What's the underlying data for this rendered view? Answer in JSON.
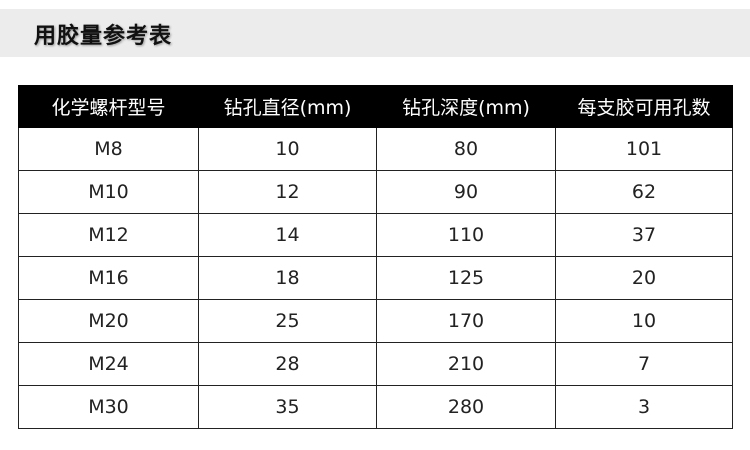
{
  "title": "用胶量参考表",
  "table": {
    "headers": [
      "化学螺杆型号",
      "钻孔直径(mm)",
      "钻孔深度(mm)",
      "每支胶可用孔数"
    ],
    "rows": [
      [
        "M8",
        "10",
        "80",
        "101"
      ],
      [
        "M10",
        "12",
        "90",
        "62"
      ],
      [
        "M12",
        "14",
        "110",
        "37"
      ],
      [
        "M16",
        "18",
        "125",
        "20"
      ],
      [
        "M20",
        "25",
        "170",
        "10"
      ],
      [
        "M24",
        "28",
        "210",
        "7"
      ],
      [
        "M30",
        "35",
        "280",
        "3"
      ]
    ]
  }
}
